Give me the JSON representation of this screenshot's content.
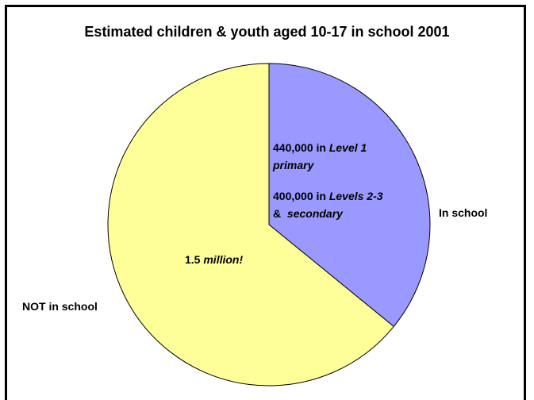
{
  "chart_data": {
    "type": "pie",
    "title": "Estimated children & youth aged 10-17 in school 2001",
    "slices": [
      {
        "label": "In school",
        "value": 840000,
        "color": "#9999ff"
      },
      {
        "label": "NOT in school",
        "value": 1500000,
        "color": "#ffff99"
      }
    ],
    "annotations": {
      "level1_prefix": "440,000 in ",
      "level1_italic_a": "Level 1",
      "level1_italic_b": "primary",
      "level23_prefix": "400,000 in ",
      "level23_italic_a": "Levels 2-3",
      "level23_amp": "&",
      "level23_italic_b": "secondary",
      "not_prefix": "1.5 ",
      "not_italic": "million!"
    },
    "colors": {
      "in_school": "#9999ff",
      "not_in_school": "#ffff99",
      "outline": "#000000"
    }
  }
}
